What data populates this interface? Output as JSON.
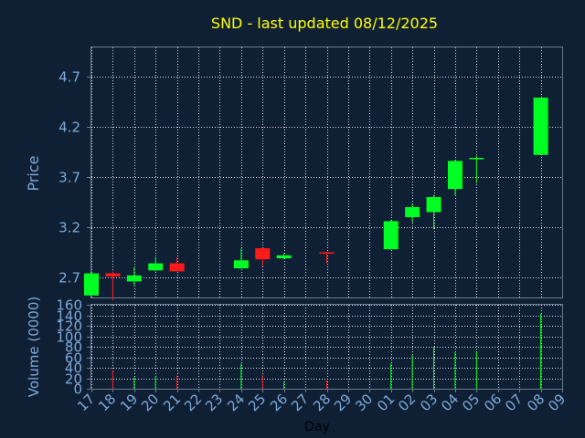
{
  "chart_data": [
    {
      "type": "candlestick",
      "title": "SND - last updated 08/12/2025",
      "ylabel": "Price",
      "ylim": [
        2.5,
        4.99
      ],
      "yticks": [
        "2.7",
        "3.2",
        "3.7",
        "4.2",
        "4.7"
      ],
      "grid": true,
      "candles": [
        {
          "day": "17",
          "open": 2.52,
          "high": 2.76,
          "low": 2.52,
          "close": 2.74
        },
        {
          "day": "18",
          "open": 2.74,
          "high": 2.76,
          "low": 2.47,
          "close": 2.71
        },
        {
          "day": "19",
          "open": 2.66,
          "high": 2.8,
          "low": 2.62,
          "close": 2.72
        },
        {
          "day": "20",
          "open": 2.77,
          "high": 2.9,
          "low": 2.76,
          "close": 2.84
        },
        {
          "day": "21",
          "open": 2.84,
          "high": 2.9,
          "low": 2.76,
          "close": 2.76
        },
        {
          "day": "24",
          "open": 2.79,
          "high": 2.99,
          "low": 2.79,
          "close": 2.87
        },
        {
          "day": "25",
          "open": 2.99,
          "high": 2.99,
          "low": 2.81,
          "close": 2.88
        },
        {
          "day": "26",
          "open": 2.89,
          "high": 2.94,
          "low": 2.88,
          "close": 2.92
        },
        {
          "day": "28",
          "open": 2.95,
          "high": 2.96,
          "low": 2.84,
          "close": 2.94
        },
        {
          "day": "01",
          "open": 2.98,
          "high": 3.27,
          "low": 2.98,
          "close": 3.26
        },
        {
          "day": "02",
          "open": 3.3,
          "high": 3.44,
          "low": 3.25,
          "close": 3.4
        },
        {
          "day": "03",
          "open": 3.35,
          "high": 3.52,
          "low": 3.18,
          "close": 3.5
        },
        {
          "day": "04",
          "open": 3.58,
          "high": 3.87,
          "low": 3.52,
          "close": 3.86
        },
        {
          "day": "05",
          "open": 3.88,
          "high": 3.91,
          "low": 3.64,
          "close": 3.89
        },
        {
          "day": "08",
          "open": 3.92,
          "high": 4.49,
          "low": 3.92,
          "close": 4.49
        }
      ],
      "colors": {
        "up": "#00ff22",
        "down": "#ff1a1a"
      }
    },
    {
      "type": "bar",
      "ylabel": "Volume (0000)",
      "xlabel": "Day",
      "ylim": [
        0,
        160
      ],
      "yticks": [
        "0",
        "20",
        "40",
        "60",
        "80",
        "100",
        "120",
        "140",
        "160"
      ],
      "categories": [
        "17",
        "18",
        "19",
        "20",
        "21",
        "22",
        "23",
        "24",
        "25",
        "26",
        "27",
        "28",
        "29",
        "30",
        "01",
        "02",
        "03",
        "04",
        "05",
        "06",
        "07",
        "08",
        "09"
      ],
      "bars": [
        {
          "day": "18",
          "value": 34,
          "direction": "down"
        },
        {
          "day": "19",
          "value": 22,
          "direction": "up"
        },
        {
          "day": "20",
          "value": 25,
          "direction": "up"
        },
        {
          "day": "21",
          "value": 25,
          "direction": "down"
        },
        {
          "day": "24",
          "value": 48,
          "direction": "up"
        },
        {
          "day": "25",
          "value": 26,
          "direction": "down"
        },
        {
          "day": "26",
          "value": 14,
          "direction": "up"
        },
        {
          "day": "28",
          "value": 16,
          "direction": "down"
        },
        {
          "day": "01",
          "value": 48,
          "direction": "up"
        },
        {
          "day": "02",
          "value": 64,
          "direction": "up"
        },
        {
          "day": "03",
          "value": 80,
          "direction": "up"
        },
        {
          "day": "04",
          "value": 70,
          "direction": "up"
        },
        {
          "day": "05",
          "value": 72,
          "direction": "up"
        },
        {
          "day": "08",
          "value": 143,
          "direction": "up"
        }
      ]
    }
  ]
}
